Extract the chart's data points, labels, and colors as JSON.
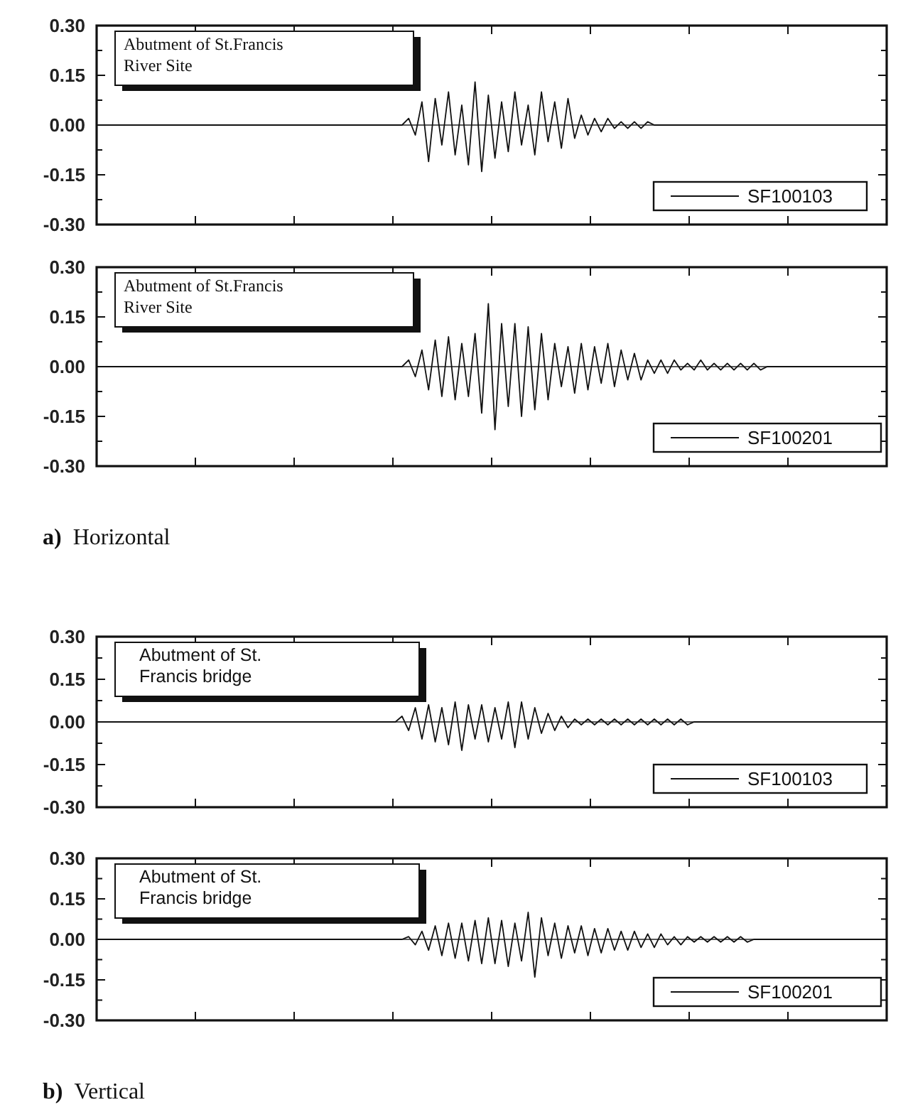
{
  "chart_data": [
    {
      "type": "line",
      "title": "Abutment of St.Francis River Site",
      "tick_labels": "y",
      "legend": "bottom right",
      "ylim": [
        -0.3,
        0.3
      ],
      "yticks": [
        {
          "value": -0.3,
          "label": "-0.30"
        },
        {
          "value": -0.15,
          "label": "-0.15"
        },
        {
          "value": 0,
          "label": "0.00"
        },
        {
          "value": 0.15,
          "label": "0.15"
        },
        {
          "value": 0.3,
          "label": "0.30"
        }
      ],
      "categories": [
        null,
        null,
        null,
        null,
        null,
        null,
        null,
        null,
        null,
        null,
        null,
        null,
        null,
        null,
        null,
        null,
        null,
        null,
        null,
        null,
        null,
        null,
        null,
        null,
        null,
        null,
        null,
        null,
        null,
        null,
        null,
        null,
        null,
        null,
        null,
        null,
        null,
        null,
        null,
        null,
        null,
        null,
        null,
        null,
        null,
        null,
        null,
        null,
        null,
        null,
        null,
        null,
        null,
        null,
        null,
        null,
        null,
        null,
        null,
        null,
        null,
        null,
        null,
        null,
        null,
        null,
        null,
        null,
        null,
        null,
        null,
        null,
        null,
        null,
        null,
        null,
        null,
        null,
        null,
        null,
        null,
        null,
        null,
        null,
        null,
        null,
        null,
        null,
        null,
        null,
        null,
        null,
        null,
        null,
        null,
        null,
        null,
        null,
        null,
        null,
        null,
        null,
        null,
        null,
        null,
        null,
        null,
        null,
        null,
        null,
        null,
        null,
        null,
        null,
        null,
        null,
        null,
        null,
        null,
        null
      ],
      "series": [
        {
          "name": "SF100103",
          "color": "#111111",
          "values": [
            0,
            0,
            0,
            0,
            0,
            0,
            0,
            0,
            0,
            0,
            0,
            0,
            0,
            0,
            0,
            0,
            0,
            0,
            0,
            0,
            0,
            0,
            0,
            0,
            0,
            0,
            0,
            0,
            0,
            0,
            0,
            0,
            0,
            0,
            0,
            0,
            0,
            0,
            0,
            0,
            0,
            0,
            0,
            0,
            0,
            0,
            0,
            0.02,
            -0.03,
            0.07,
            -0.11,
            0.08,
            -0.06,
            0.1,
            -0.09,
            0.06,
            -0.12,
            0.13,
            -0.14,
            0.09,
            -0.1,
            0.07,
            -0.08,
            0.1,
            -0.06,
            0.06,
            -0.09,
            0.1,
            -0.05,
            0.07,
            -0.07,
            0.08,
            -0.04,
            0.03,
            -0.03,
            0.02,
            -0.02,
            0.02,
            -0.01,
            0.01,
            -0.01,
            0.01,
            -0.01,
            0.01,
            0,
            0,
            0,
            0,
            0,
            0,
            0,
            0,
            0,
            0,
            0,
            0,
            0,
            0,
            0,
            0,
            0,
            0,
            0,
            0,
            0,
            0,
            0,
            0,
            0,
            0,
            0,
            0,
            0,
            0,
            0,
            0,
            0,
            0,
            0,
            0
          ]
        }
      ]
    },
    {
      "type": "line",
      "title": "Abutment of St.Francis River Site",
      "tick_labels": "y",
      "legend": "bottom right",
      "annotations": [
        "a) Horizontal"
      ],
      "ylim": [
        -0.3,
        0.3
      ],
      "yticks": [
        {
          "value": -0.3,
          "label": "-0.30"
        },
        {
          "value": -0.15,
          "label": "-0.15"
        },
        {
          "value": 0,
          "label": "0.00"
        },
        {
          "value": 0.15,
          "label": "0.15"
        },
        {
          "value": 0.3,
          "label": "0.30"
        }
      ],
      "categories": [
        null,
        null,
        null,
        null,
        null,
        null,
        null,
        null,
        null,
        null,
        null,
        null,
        null,
        null,
        null,
        null,
        null,
        null,
        null,
        null,
        null,
        null,
        null,
        null,
        null,
        null,
        null,
        null,
        null,
        null,
        null,
        null,
        null,
        null,
        null,
        null,
        null,
        null,
        null,
        null,
        null,
        null,
        null,
        null,
        null,
        null,
        null,
        null,
        null,
        null,
        null,
        null,
        null,
        null,
        null,
        null,
        null,
        null,
        null,
        null,
        null,
        null,
        null,
        null,
        null,
        null,
        null,
        null,
        null,
        null,
        null,
        null,
        null,
        null,
        null,
        null,
        null,
        null,
        null,
        null,
        null,
        null,
        null,
        null,
        null,
        null,
        null,
        null,
        null,
        null,
        null,
        null,
        null,
        null,
        null,
        null,
        null,
        null,
        null,
        null,
        null,
        null,
        null,
        null,
        null,
        null,
        null,
        null,
        null,
        null,
        null,
        null,
        null,
        null,
        null,
        null,
        null,
        null,
        null,
        null
      ],
      "series": [
        {
          "name": "SF100201",
          "color": "#111111",
          "values": [
            0,
            0,
            0,
            0,
            0,
            0,
            0,
            0,
            0,
            0,
            0,
            0,
            0,
            0,
            0,
            0,
            0,
            0,
            0,
            0,
            0,
            0,
            0,
            0,
            0,
            0,
            0,
            0,
            0,
            0,
            0,
            0,
            0,
            0,
            0,
            0,
            0,
            0,
            0,
            0,
            0,
            0,
            0,
            0,
            0,
            0,
            0,
            0.02,
            -0.03,
            0.05,
            -0.07,
            0.08,
            -0.09,
            0.09,
            -0.1,
            0.07,
            -0.09,
            0.1,
            -0.14,
            0.19,
            -0.19,
            0.13,
            -0.12,
            0.13,
            -0.15,
            0.12,
            -0.13,
            0.1,
            -0.1,
            0.07,
            -0.06,
            0.06,
            -0.08,
            0.07,
            -0.07,
            0.06,
            -0.05,
            0.07,
            -0.06,
            0.05,
            -0.04,
            0.04,
            -0.04,
            0.02,
            -0.02,
            0.02,
            -0.02,
            0.02,
            -0.01,
            0.01,
            -0.01,
            0.02,
            -0.01,
            0.01,
            -0.01,
            0.01,
            -0.01,
            0.01,
            -0.01,
            0.01,
            -0.01,
            0,
            0,
            0,
            0,
            0,
            0,
            0,
            0,
            0,
            0,
            0,
            0,
            0,
            0,
            0,
            0,
            0,
            0,
            0
          ]
        }
      ]
    },
    {
      "type": "line",
      "title": "Abutment of St. Francis bridge",
      "tick_labels": "y",
      "legend": "bottom right",
      "ylim": [
        -0.3,
        0.3
      ],
      "yticks": [
        {
          "value": -0.3,
          "label": "-0.30"
        },
        {
          "value": -0.15,
          "label": "-0.15"
        },
        {
          "value": 0,
          "label": "0.00"
        },
        {
          "value": 0.15,
          "label": "0.15"
        },
        {
          "value": 0.3,
          "label": "0.30"
        }
      ],
      "categories": [
        null,
        null,
        null,
        null,
        null,
        null,
        null,
        null,
        null,
        null,
        null,
        null,
        null,
        null,
        null,
        null,
        null,
        null,
        null,
        null,
        null,
        null,
        null,
        null,
        null,
        null,
        null,
        null,
        null,
        null,
        null,
        null,
        null,
        null,
        null,
        null,
        null,
        null,
        null,
        null,
        null,
        null,
        null,
        null,
        null,
        null,
        null,
        null,
        null,
        null,
        null,
        null,
        null,
        null,
        null,
        null,
        null,
        null,
        null,
        null,
        null,
        null,
        null,
        null,
        null,
        null,
        null,
        null,
        null,
        null,
        null,
        null,
        null,
        null,
        null,
        null,
        null,
        null,
        null,
        null,
        null,
        null,
        null,
        null,
        null,
        null,
        null,
        null,
        null,
        null,
        null,
        null,
        null,
        null,
        null,
        null,
        null,
        null,
        null,
        null,
        null,
        null,
        null,
        null,
        null,
        null,
        null,
        null,
        null,
        null,
        null,
        null,
        null,
        null,
        null,
        null,
        null,
        null,
        null,
        null
      ],
      "series": [
        {
          "name": "SF100103",
          "color": "#111111",
          "values": [
            0,
            0,
            0,
            0,
            0,
            0,
            0,
            0,
            0,
            0,
            0,
            0,
            0,
            0,
            0,
            0,
            0,
            0,
            0,
            0,
            0,
            0,
            0,
            0,
            0,
            0,
            0,
            0,
            0,
            0,
            0,
            0,
            0,
            0,
            0,
            0,
            0,
            0,
            0,
            0,
            0,
            0,
            0,
            0,
            0,
            0,
            0.02,
            -0.03,
            0.05,
            -0.06,
            0.06,
            -0.07,
            0.05,
            -0.08,
            0.07,
            -0.1,
            0.06,
            -0.06,
            0.06,
            -0.07,
            0.05,
            -0.06,
            0.07,
            -0.09,
            0.07,
            -0.06,
            0.05,
            -0.04,
            0.03,
            -0.03,
            0.02,
            -0.02,
            0.01,
            -0.01,
            0.01,
            -0.01,
            0.01,
            -0.01,
            0.01,
            -0.01,
            0.01,
            -0.01,
            0.01,
            -0.01,
            0.01,
            -0.01,
            0.01,
            -0.01,
            0.01,
            -0.01,
            0,
            0,
            0,
            0,
            0,
            0,
            0,
            0,
            0,
            0,
            0,
            0,
            0,
            0,
            0,
            0,
            0,
            0,
            0,
            0,
            0,
            0,
            0,
            0,
            0,
            0,
            0,
            0,
            0,
            0
          ]
        }
      ]
    },
    {
      "type": "line",
      "title": "Abutment of St. Francis bridge",
      "tick_labels": "y",
      "legend": "bottom right",
      "annotations": [
        "b) Vertical"
      ],
      "ylim": [
        -0.3,
        0.3
      ],
      "yticks": [
        {
          "value": -0.3,
          "label": "-0.30"
        },
        {
          "value": -0.15,
          "label": "-0.15"
        },
        {
          "value": 0,
          "label": "0.00"
        },
        {
          "value": 0.15,
          "label": "0.15"
        },
        {
          "value": 0.3,
          "label": "0.30"
        }
      ],
      "categories": [
        null,
        null,
        null,
        null,
        null,
        null,
        null,
        null,
        null,
        null,
        null,
        null,
        null,
        null,
        null,
        null,
        null,
        null,
        null,
        null,
        null,
        null,
        null,
        null,
        null,
        null,
        null,
        null,
        null,
        null,
        null,
        null,
        null,
        null,
        null,
        null,
        null,
        null,
        null,
        null,
        null,
        null,
        null,
        null,
        null,
        null,
        null,
        null,
        null,
        null,
        null,
        null,
        null,
        null,
        null,
        null,
        null,
        null,
        null,
        null,
        null,
        null,
        null,
        null,
        null,
        null,
        null,
        null,
        null,
        null,
        null,
        null,
        null,
        null,
        null,
        null,
        null,
        null,
        null,
        null,
        null,
        null,
        null,
        null,
        null,
        null,
        null,
        null,
        null,
        null,
        null,
        null,
        null,
        null,
        null,
        null,
        null,
        null,
        null,
        null,
        null,
        null,
        null,
        null,
        null,
        null,
        null,
        null,
        null,
        null,
        null,
        null,
        null,
        null,
        null,
        null,
        null,
        null,
        null,
        null
      ],
      "series": [
        {
          "name": "SF100201",
          "color": "#111111",
          "values": [
            0,
            0,
            0,
            0,
            0,
            0,
            0,
            0,
            0,
            0,
            0,
            0,
            0,
            0,
            0,
            0,
            0,
            0,
            0,
            0,
            0,
            0,
            0,
            0,
            0,
            0,
            0,
            0,
            0,
            0,
            0,
            0,
            0,
            0,
            0,
            0,
            0,
            0,
            0,
            0,
            0,
            0,
            0,
            0,
            0,
            0,
            0,
            0.01,
            -0.02,
            0.03,
            -0.04,
            0.05,
            -0.06,
            0.06,
            -0.07,
            0.06,
            -0.08,
            0.07,
            -0.09,
            0.08,
            -0.09,
            0.07,
            -0.1,
            0.06,
            -0.08,
            0.1,
            -0.14,
            0.08,
            -0.06,
            0.06,
            -0.07,
            0.05,
            -0.05,
            0.05,
            -0.06,
            0.04,
            -0.05,
            0.04,
            -0.04,
            0.03,
            -0.04,
            0.03,
            -0.03,
            0.02,
            -0.03,
            0.02,
            -0.02,
            0.01,
            -0.02,
            0.01,
            -0.01,
            0.01,
            -0.01,
            0.01,
            -0.01,
            0.01,
            -0.01,
            0.01,
            -0.01,
            0,
            0,
            0,
            0,
            0,
            0,
            0,
            0,
            0,
            0,
            0,
            0,
            0,
            0,
            0,
            0,
            0,
            0,
            0,
            0,
            0
          ]
        }
      ]
    }
  ]
}
